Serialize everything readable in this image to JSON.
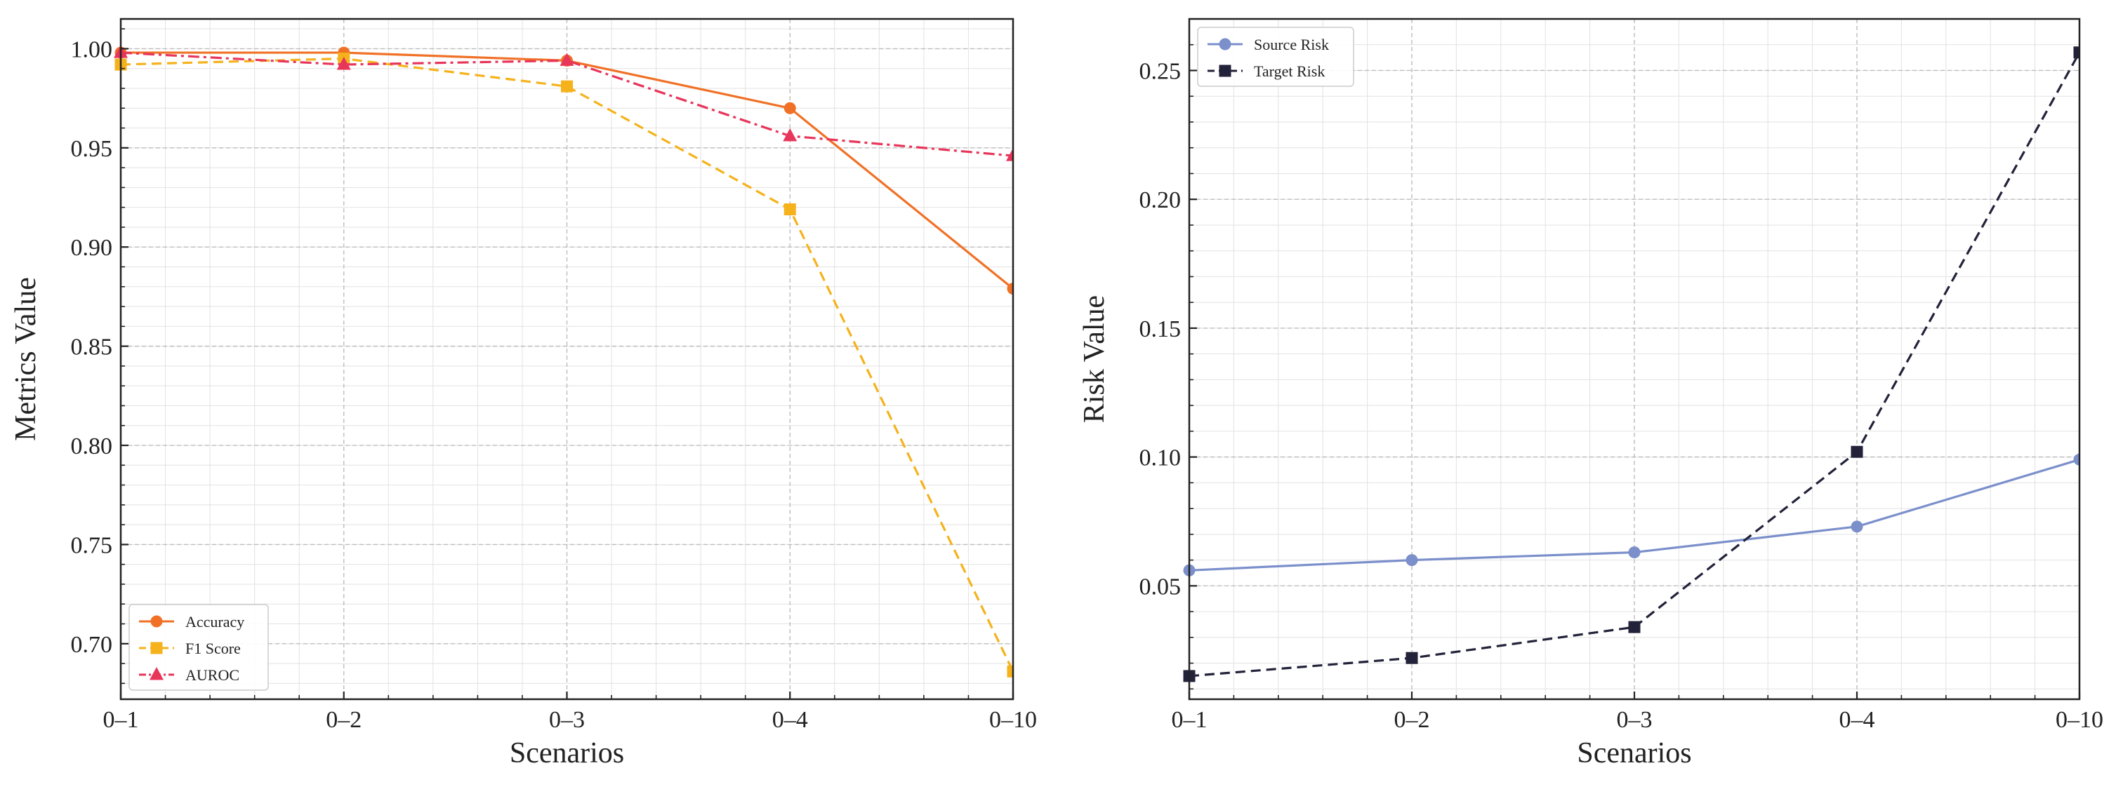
{
  "chart_data": [
    {
      "type": "line",
      "title": "",
      "xlabel": "Scenarios",
      "ylabel": "Metrics Value",
      "categories": [
        "0–1",
        "0–2",
        "0–3",
        "0–4",
        "0–10"
      ],
      "ylim": [
        0.672,
        1.015
      ],
      "yticks": [
        0.7,
        0.75,
        0.8,
        0.85,
        0.9,
        0.95,
        1.0
      ],
      "ytick_labels": [
        "0.70",
        "0.75",
        "0.80",
        "0.85",
        "0.90",
        "0.95",
        "1.00"
      ],
      "grid": true,
      "legend_position": "bottom-left",
      "series": [
        {
          "name": "Accuracy",
          "values": [
            0.998,
            0.998,
            0.994,
            0.97,
            0.879
          ],
          "color": "#f07126",
          "marker": "circle",
          "linestyle": "solid"
        },
        {
          "name": "F1 Score",
          "values": [
            0.992,
            0.995,
            0.981,
            0.919,
            0.686
          ],
          "color": "#f5b21b",
          "marker": "square",
          "linestyle": "dashed"
        },
        {
          "name": "AUROC",
          "values": [
            0.998,
            0.992,
            0.994,
            0.956,
            0.946
          ],
          "color": "#e8355a",
          "marker": "triangle",
          "linestyle": "dashdot"
        }
      ]
    },
    {
      "type": "line",
      "title": "",
      "xlabel": "Scenarios",
      "ylabel": "Risk Value",
      "categories": [
        "0–1",
        "0–2",
        "0–3",
        "0–4",
        "0–10"
      ],
      "ylim": [
        0.006,
        0.27
      ],
      "yticks": [
        0.05,
        0.1,
        0.15,
        0.2,
        0.25
      ],
      "ytick_labels": [
        "0.05",
        "0.10",
        "0.15",
        "0.20",
        "0.25"
      ],
      "grid": true,
      "legend_position": "top-left",
      "series": [
        {
          "name": "Source Risk",
          "values": [
            0.056,
            0.06,
            0.063,
            0.073,
            0.099
          ],
          "color": "#7b8fcb",
          "marker": "circle",
          "linestyle": "solid"
        },
        {
          "name": "Target Risk",
          "values": [
            0.015,
            0.022,
            0.034,
            0.102,
            0.257
          ],
          "color": "#22223a",
          "marker": "square",
          "linestyle": "dashed"
        }
      ]
    }
  ]
}
